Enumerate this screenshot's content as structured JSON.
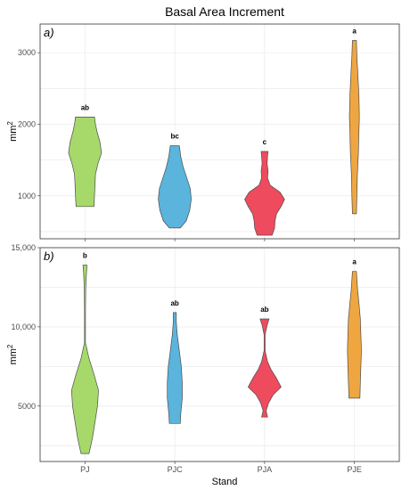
{
  "chart_data": {
    "type": "violin",
    "title": "Basal Area Increment",
    "xlabel": "Stand",
    "categories": [
      "PJ",
      "PJC",
      "PJA",
      "PJE"
    ],
    "colors": [
      "#a6d96a",
      "#5ab4dc",
      "#ee4b5e",
      "#f0a640"
    ],
    "panels": [
      {
        "label": "a)",
        "ylabel": "mm",
        "ylabel_superscript": "2",
        "ylim": [
          400,
          3400
        ],
        "yticks": [
          1000,
          2000,
          3000
        ],
        "ytick_labels": [
          "1000",
          "2000",
          "3000"
        ],
        "grid": true,
        "violins": [
          {
            "category": "PJ",
            "letter": "ab",
            "profile": [
              [
                850,
                0.36
              ],
              [
                1000,
                0.38
              ],
              [
                1150,
                0.4
              ],
              [
                1300,
                0.42
              ],
              [
                1450,
                0.52
              ],
              [
                1600,
                0.66
              ],
              [
                1750,
                0.6
              ],
              [
                1900,
                0.48
              ],
              [
                2000,
                0.42
              ],
              [
                2100,
                0.38
              ]
            ]
          },
          {
            "category": "PJC",
            "letter": "bc",
            "profile": [
              [
                550,
                0.22
              ],
              [
                650,
                0.46
              ],
              [
                800,
                0.6
              ],
              [
                950,
                0.66
              ],
              [
                1100,
                0.62
              ],
              [
                1250,
                0.48
              ],
              [
                1400,
                0.34
              ],
              [
                1550,
                0.24
              ],
              [
                1700,
                0.18
              ]
            ]
          },
          {
            "category": "PJA",
            "letter": "c",
            "profile": [
              [
                450,
                0.3
              ],
              [
                550,
                0.4
              ],
              [
                650,
                0.42
              ],
              [
                750,
                0.48
              ],
              [
                850,
                0.66
              ],
              [
                950,
                0.8
              ],
              [
                1050,
                0.62
              ],
              [
                1150,
                0.22
              ],
              [
                1250,
                0.12
              ],
              [
                1350,
                0.14
              ],
              [
                1450,
                0.1
              ],
              [
                1550,
                0.12
              ],
              [
                1620,
                0.14
              ]
            ]
          },
          {
            "category": "PJE",
            "letter": "a",
            "profile": [
              [
                750,
                0.08
              ],
              [
                1000,
                0.1
              ],
              [
                1300,
                0.12
              ],
              [
                1600,
                0.16
              ],
              [
                1900,
                0.18
              ],
              [
                2100,
                0.2
              ],
              [
                2400,
                0.18
              ],
              [
                2700,
                0.14
              ],
              [
                2950,
                0.1
              ],
              [
                3170,
                0.08
              ]
            ]
          }
        ]
      },
      {
        "label": "b)",
        "ylabel": "mm",
        "ylabel_superscript": "2",
        "ylim": [
          1500,
          15000
        ],
        "yticks": [
          5000,
          10000,
          15000
        ],
        "ytick_labels": [
          "5000",
          "10,000",
          "15,000"
        ],
        "grid": true,
        "violins": [
          {
            "category": "PJ",
            "letter": "b",
            "profile": [
              [
                2000,
                0.16
              ],
              [
                3000,
                0.3
              ],
              [
                4000,
                0.4
              ],
              [
                5000,
                0.5
              ],
              [
                6000,
                0.54
              ],
              [
                7000,
                0.36
              ],
              [
                8000,
                0.16
              ],
              [
                9000,
                0.02
              ],
              [
                11000,
                0.02
              ],
              [
                12500,
                0.03
              ],
              [
                13500,
                0.06
              ],
              [
                13900,
                0.08
              ]
            ]
          },
          {
            "category": "PJC",
            "letter": "ab",
            "profile": [
              [
                3900,
                0.22
              ],
              [
                4500,
                0.24
              ],
              [
                5500,
                0.3
              ],
              [
                6500,
                0.3
              ],
              [
                7500,
                0.26
              ],
              [
                8500,
                0.18
              ],
              [
                9500,
                0.1
              ],
              [
                10300,
                0.06
              ],
              [
                10900,
                0.06
              ]
            ]
          },
          {
            "category": "PJA",
            "letter": "ab",
            "profile": [
              [
                4300,
                0.12
              ],
              [
                4700,
                0.06
              ],
              [
                5200,
                0.16
              ],
              [
                5700,
                0.34
              ],
              [
                6200,
                0.66
              ],
              [
                6800,
                0.46
              ],
              [
                7300,
                0.26
              ],
              [
                7800,
                0.12
              ],
              [
                8500,
                0.02
              ],
              [
                9500,
                0.02
              ],
              [
                10100,
                0.1
              ],
              [
                10500,
                0.18
              ]
            ]
          },
          {
            "category": "PJE",
            "letter": "a",
            "profile": [
              [
                5500,
                0.22
              ],
              [
                6500,
                0.24
              ],
              [
                7500,
                0.26
              ],
              [
                8500,
                0.28
              ],
              [
                9500,
                0.26
              ],
              [
                10500,
                0.24
              ],
              [
                11500,
                0.18
              ],
              [
                12500,
                0.12
              ],
              [
                13500,
                0.08
              ]
            ]
          }
        ]
      }
    ]
  }
}
